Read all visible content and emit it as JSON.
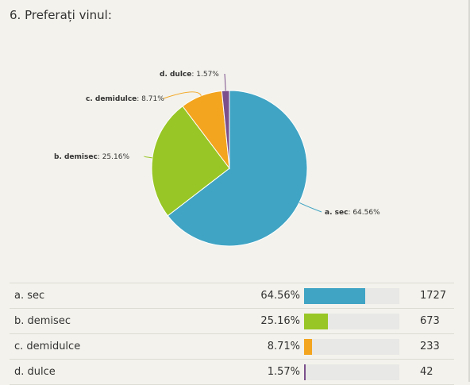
{
  "question": {
    "title": "6. Preferați vinul:"
  },
  "chart_data": {
    "type": "pie",
    "title": "6. Preferați vinul:",
    "slices": [
      {
        "name": "a. sec",
        "percent": 64.56,
        "count": 1727,
        "color": "#40a4c4",
        "pct_label": "64.56%"
      },
      {
        "name": "b. demisec",
        "percent": 25.16,
        "count": 673,
        "color": "#98c626",
        "pct_label": "25.16%"
      },
      {
        "name": "c. demidulce",
        "percent": 8.71,
        "count": 233,
        "color": "#f3a51f",
        "pct_label": "8.71%"
      },
      {
        "name": "d. dulce",
        "percent": 1.57,
        "count": 42,
        "color": "#7b4f8c",
        "pct_label": "1.57%"
      }
    ]
  },
  "table": {
    "rows": [
      {
        "label": "a. sec",
        "pct": "64.56%",
        "count": "1727"
      },
      {
        "label": "b. demisec",
        "pct": "25.16%",
        "count": "673"
      },
      {
        "label": "c. demidulce",
        "pct": "8.71%",
        "count": "233"
      },
      {
        "label": "d. dulce",
        "pct": "1.57%",
        "count": "42"
      }
    ]
  }
}
